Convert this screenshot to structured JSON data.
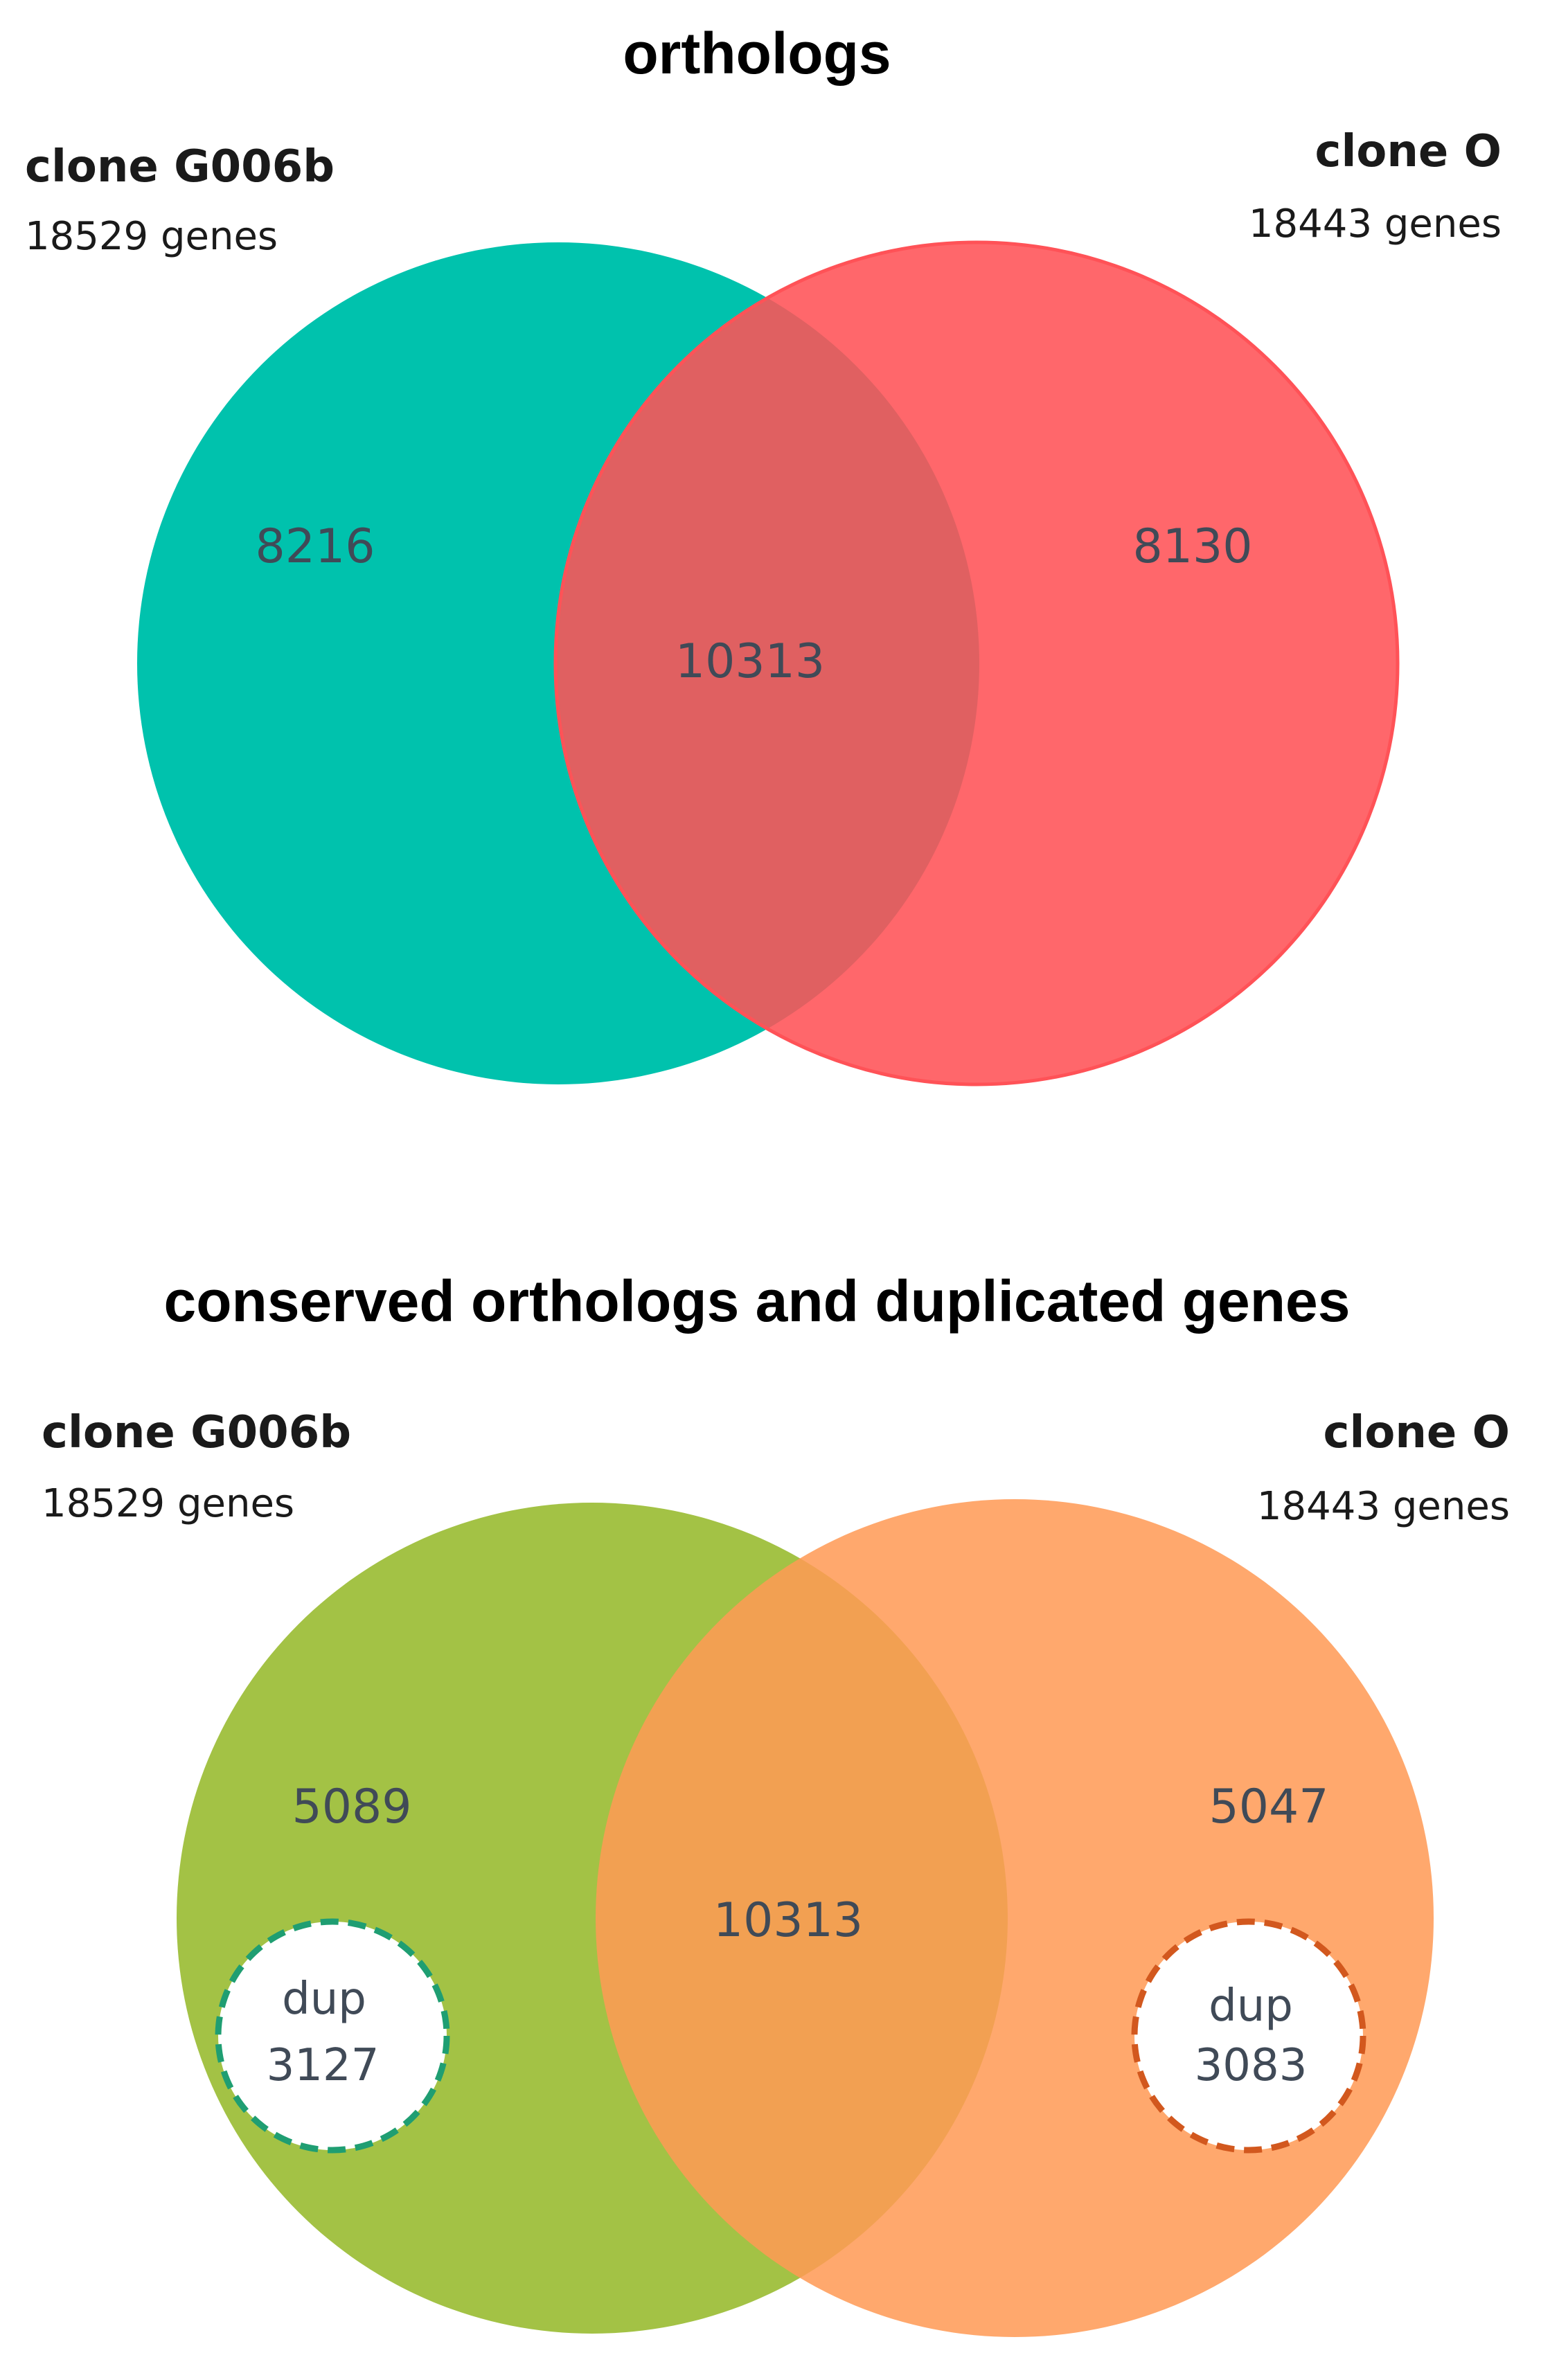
{
  "panels": [
    {
      "title": "orthologs",
      "left_set": {
        "name": "clone G006b",
        "size": "18529 genes",
        "color": "#00c2ad"
      },
      "right_set": {
        "name": "clone O",
        "size": "18443 genes",
        "color": "#ff5257"
      },
      "regions": {
        "left_only": "8216",
        "intersection": "10313",
        "right_only": "8130"
      }
    },
    {
      "title": "conserved orthologs and duplicated genes",
      "left_set": {
        "name": "clone G006b",
        "size": "18529 genes",
        "color": "#a3c245"
      },
      "right_set": {
        "name": "clone O",
        "size": "18443 genes",
        "color": "#ff9a55"
      },
      "regions": {
        "left_only": "5089",
        "intersection": "10313",
        "right_only": "5047"
      },
      "duplicated": {
        "left": {
          "label": "dup",
          "value": "3127",
          "border_color": "#1f9e72"
        },
        "right": {
          "label": "dup",
          "value": "3083",
          "border_color": "#d2581e"
        }
      }
    }
  ]
}
